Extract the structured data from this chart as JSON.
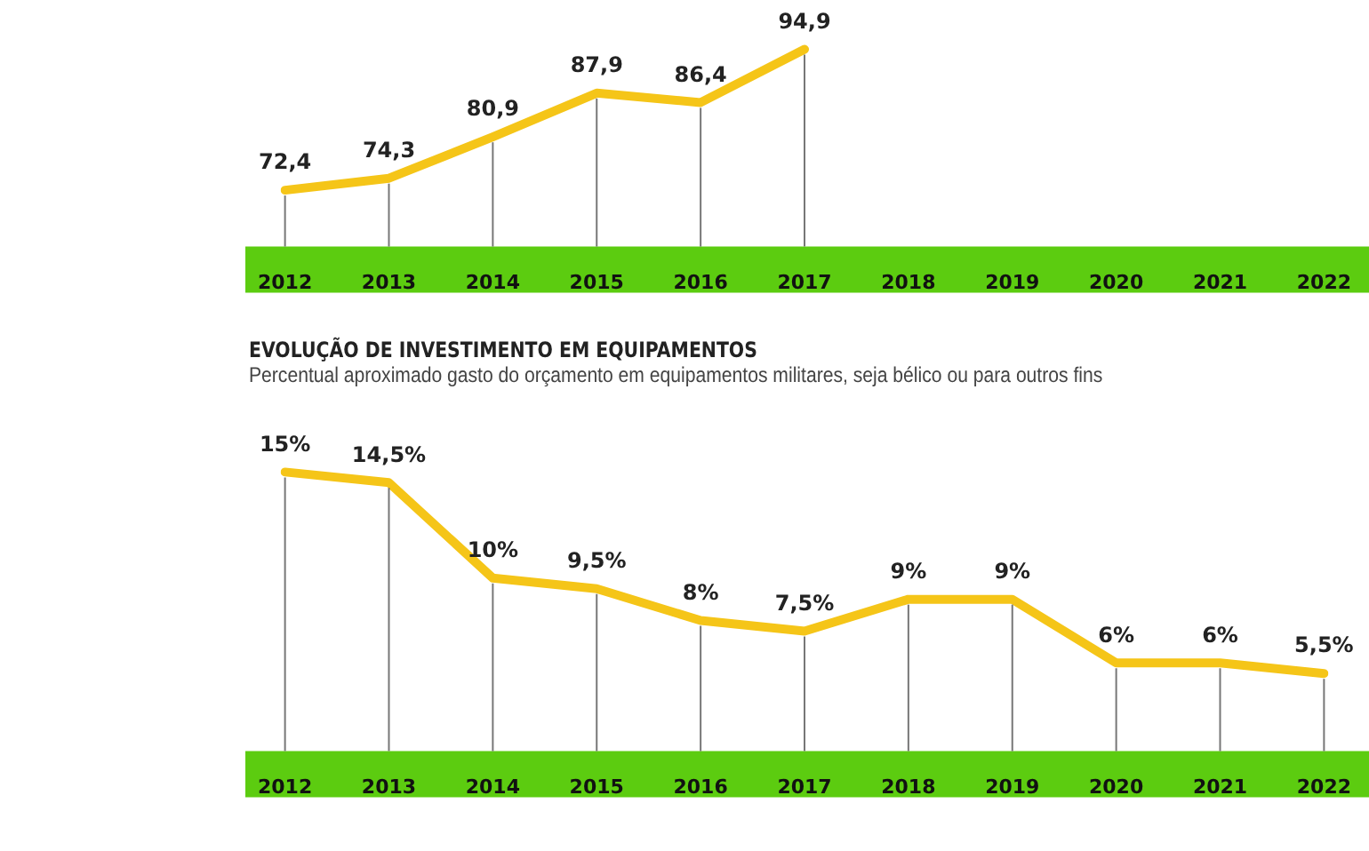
{
  "chart_data": [
    {
      "type": "line",
      "categories": [
        "2012",
        "2013",
        "2014",
        "2015",
        "2016",
        "2017",
        "2018",
        "2019",
        "2020",
        "2021",
        "2022"
      ],
      "values": [
        72.4,
        74.3,
        80.9,
        87.9,
        86.4,
        94.9,
        null,
        null,
        null,
        null,
        null
      ],
      "value_labels": [
        "72,4",
        "74,3",
        "80,9",
        "87,9",
        "86,4",
        "94,9",
        null,
        null,
        null,
        null,
        null
      ],
      "color": "#f5c518",
      "grid": "x",
      "legend": false,
      "tick_labels": "x",
      "marker": "none"
    },
    {
      "type": "line",
      "title": "EVOLUÇÃO DE INVESTIMENTO EM EQUIPAMENTOS",
      "subtitle": "Percentual aproximado gasto do orçamento em equipamentos militares, seja bélico ou para outros fins",
      "categories": [
        "2012",
        "2013",
        "2014",
        "2015",
        "2016",
        "2017",
        "2018",
        "2019",
        "2020",
        "2021",
        "2022"
      ],
      "values": [
        15,
        14.5,
        10,
        9.5,
        8,
        7.5,
        9,
        9,
        6,
        6,
        5.5
      ],
      "value_labels": [
        "15%",
        "14,5%",
        "10%",
        "9,5%",
        "8%",
        "7,5%",
        "9%",
        "9%",
        "6%",
        "6%",
        "5,5%"
      ],
      "color": "#f5c518",
      "grid": "x",
      "legend": false,
      "tick_labels": "x",
      "marker": "none"
    }
  ]
}
